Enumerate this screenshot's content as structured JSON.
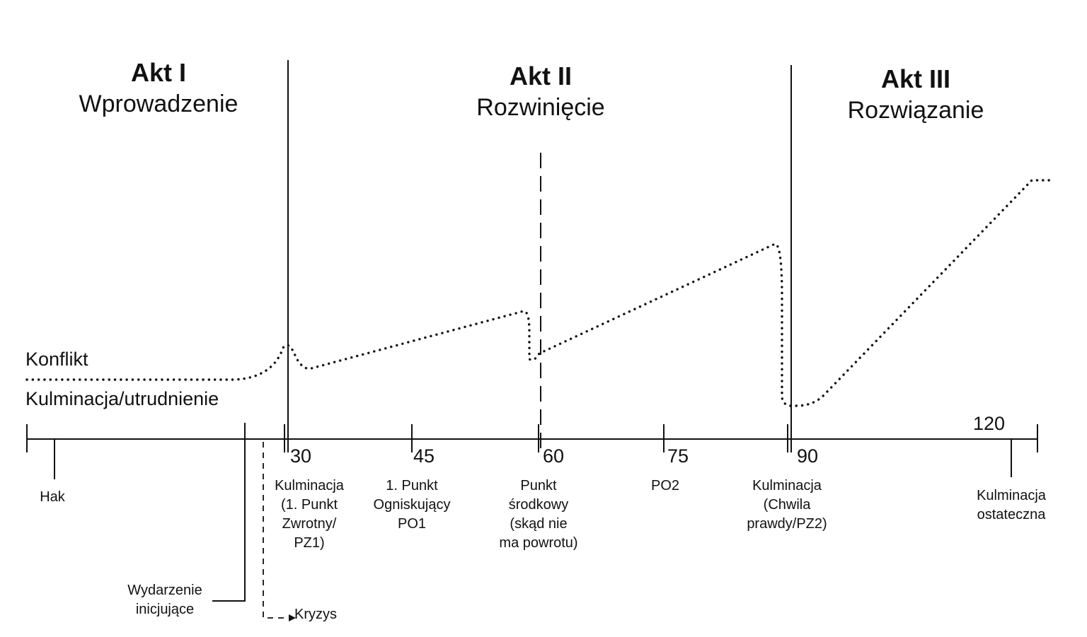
{
  "acts": [
    {
      "title": "Akt I",
      "subtitle": "Wprowadzenie"
    },
    {
      "title": "Akt II",
      "subtitle": "Rozwinięcie"
    },
    {
      "title": "Akt III",
      "subtitle": "Rozwiązanie"
    }
  ],
  "side_labels": {
    "conflict": "Konflikt",
    "culmination": "Kulminacja/utrudnienie"
  },
  "minutes": [
    "30",
    "45",
    "60",
    "75",
    "90",
    "120"
  ],
  "labels": {
    "hook": "Hak",
    "inciting": [
      "Wydarzenie",
      "inicjujące"
    ],
    "crisis": "Kryzys",
    "pz1": [
      "Kulminacja",
      "(1. Punkt",
      "Zwrotny/",
      "PZ1)"
    ],
    "po1": [
      "1. Punkt",
      "Ogniskujący",
      "PO1"
    ],
    "midpoint": [
      "Punkt",
      "środkowy",
      "(skąd nie",
      "ma powrotu)"
    ],
    "po2": "PO2",
    "pz2": [
      "Kulminacja",
      "(Chwila",
      "prawdy/PZ2)"
    ],
    "final": [
      "Kulminacja",
      "ostateczna"
    ]
  },
  "colors": {
    "ink": "#111111",
    "background": "#ffffff"
  }
}
